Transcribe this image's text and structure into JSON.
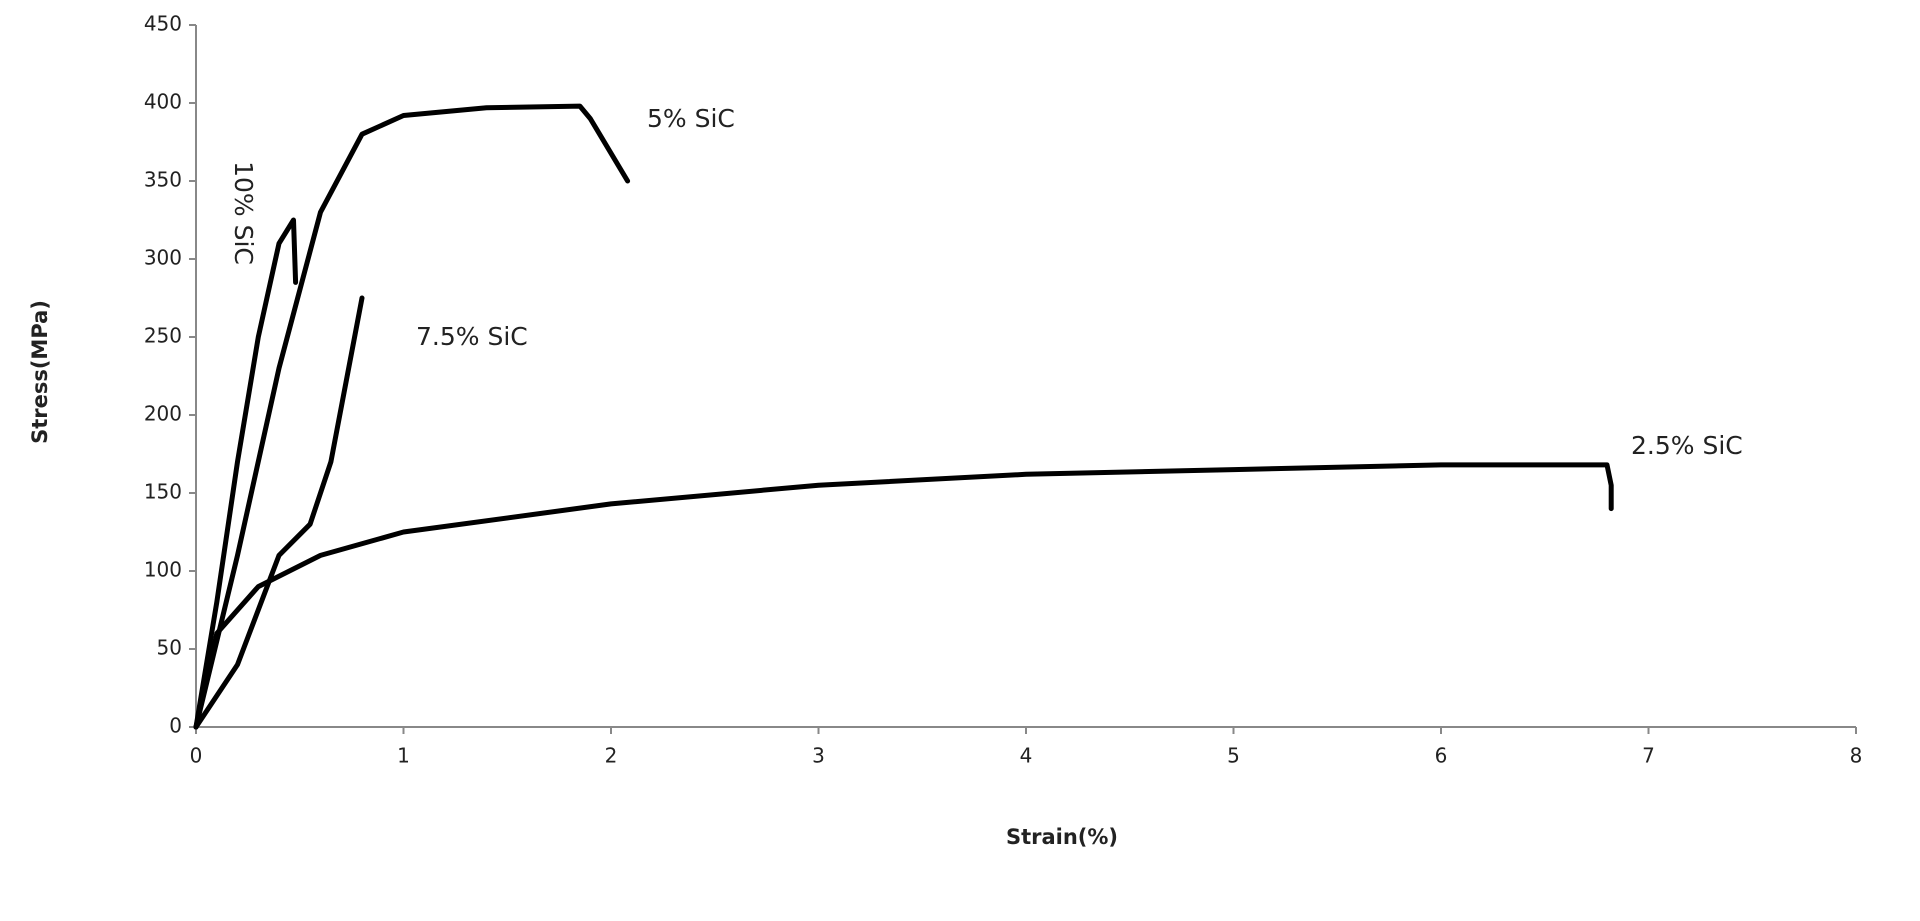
{
  "chart_data": {
    "type": "line",
    "xlabel": "Strain(%)",
    "ylabel": "Stress(MPa)",
    "xlim": [
      0,
      8
    ],
    "xticks": [
      0,
      1,
      2,
      3,
      4,
      5,
      6,
      7,
      8
    ],
    "ylim": [
      0,
      450
    ],
    "yticks": [
      0,
      50,
      100,
      150,
      200,
      250,
      300,
      350,
      400,
      450
    ],
    "grid": false,
    "series": [
      {
        "name": "10% SiC",
        "color": "#000000",
        "x": [
          0,
          0.1,
          0.2,
          0.3,
          0.4,
          0.47,
          0.48
        ],
        "values": [
          0,
          80,
          170,
          250,
          310,
          325,
          285
        ]
      },
      {
        "name": "5% SiC",
        "color": "#000000",
        "x": [
          0,
          0.2,
          0.4,
          0.6,
          0.8,
          1,
          1.4,
          1.85,
          1.9,
          2.08
        ],
        "values": [
          0,
          110,
          230,
          330,
          380,
          392,
          397,
          398,
          390,
          350
        ]
      },
      {
        "name": "7.5% SiC",
        "color": "#000000",
        "x": [
          0,
          0.2,
          0.4,
          0.55,
          0.65,
          0.8
        ],
        "values": [
          0,
          40,
          110,
          130,
          170,
          275
        ]
      },
      {
        "name": "2.5% SiC",
        "color": "#000000",
        "x": [
          0,
          0.1,
          0.3,
          0.6,
          1,
          2,
          3,
          4,
          5,
          6,
          6.8,
          6.82,
          6.82
        ],
        "values": [
          0,
          60,
          90,
          110,
          125,
          143,
          155,
          162,
          165,
          168,
          168,
          155,
          140
        ]
      }
    ]
  }
}
